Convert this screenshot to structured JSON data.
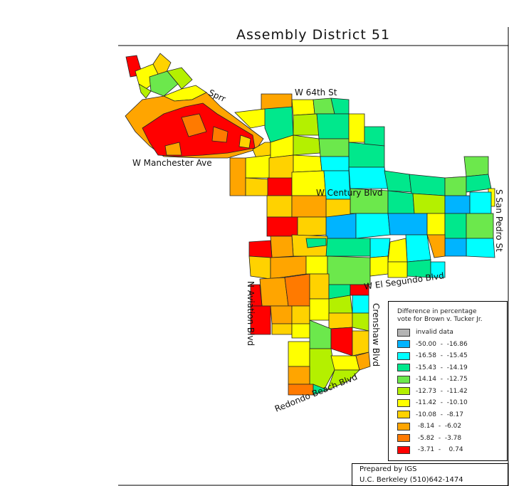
{
  "map": {
    "title": "Assembly District 51",
    "roads": {
      "sprr": "Sprr",
      "w64th": "W 64th St",
      "manchester": "W Manchester Ave",
      "century": "W Century Blvd",
      "san_pedro": "S San Pedro St",
      "el_segundo": "W El Segundo Blvd",
      "aviation": "N Aviation Blvd",
      "crenshaw": "Crenshaw Blvd",
      "redondo": "Redondo Beach Blvd"
    },
    "colors": {
      "invalid": "#b4b4b4",
      "c1": "#00b4ff",
      "c2": "#00ffff",
      "c3": "#00e88c",
      "c4": "#6ce84c",
      "c5": "#b4f000",
      "c6": "#ffff00",
      "c7": "#ffd200",
      "c8": "#ffa500",
      "c9": "#ff7a00",
      "c10": "#ff0000"
    }
  },
  "legend": {
    "title_line1": "Difference in percentage",
    "title_line2": "vote for Brown v. Tucker Jr.",
    "items": [
      {
        "label": "invalid data",
        "color": "#b4b4b4"
      },
      {
        "label": "-50.00  -  -16.86",
        "color": "#00b4ff"
      },
      {
        "label": "-16.58  -  -15.45",
        "color": "#00ffff"
      },
      {
        "label": "-15.43  -  -14.19",
        "color": "#00e88c"
      },
      {
        "label": "-14.14  -  -12.75",
        "color": "#6ce84c"
      },
      {
        "label": "-12.73  -  -11.42",
        "color": "#b4f000"
      },
      {
        "label": "-11.42  -  -10.10",
        "color": "#ffff00"
      },
      {
        "label": "-10.08  -  -8.17",
        "color": "#ffd200"
      },
      {
        "label": " -8.14  -  -6.02",
        "color": "#ffa500"
      },
      {
        "label": " -5.82  -  -3.78",
        "color": "#ff7a00"
      },
      {
        "label": " -3.71  -    0.74",
        "color": "#ff0000"
      }
    ]
  },
  "credits": {
    "line1": "Prepared by IGS",
    "line2": "U.C. Berkeley (510)642-1474"
  }
}
